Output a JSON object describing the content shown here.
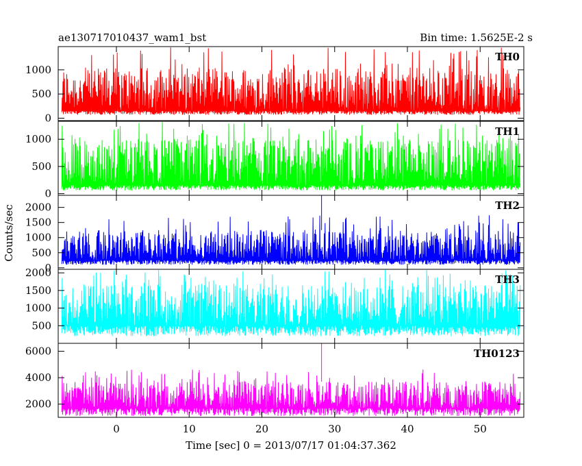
{
  "header": {
    "title": "ae130717010437_wam1_bst",
    "bin_time": "Bin time: 1.5625E-2 s"
  },
  "chart_data": {
    "type": "line",
    "title": "ae130717010437_wam1_bst",
    "subtitle": "Bin time: 1.5625E-2 s",
    "xlabel": "Time [sec] 0 = 2013/07/17 01:04:37.362",
    "ylabel": "Counts/sec",
    "xlim": [
      -8,
      56
    ],
    "x_ticks": [
      0,
      10,
      20,
      30,
      40,
      50
    ],
    "x_tick_labels": [
      "0",
      "10",
      "20",
      "30",
      "40",
      "50"
    ],
    "x_data_range": [
      -7.5,
      55.5
    ],
    "legend": "none",
    "grid": false,
    "panels": [
      {
        "name": "TH0",
        "color": "#ff0000",
        "ylim": [
          -50,
          1480
        ],
        "y_ticks": [
          0,
          500,
          1000
        ],
        "y_tick_labels": [
          "0",
          "500",
          "1000"
        ],
        "baseline_low": 70,
        "typical_low": 150,
        "typical_high": 1050,
        "peak_max": 1480
      },
      {
        "name": "TH1",
        "color": "#00ff00",
        "ylim": [
          -30,
          1330
        ],
        "y_ticks": [
          0,
          500,
          1000
        ],
        "y_tick_labels": [
          "0",
          "500",
          "1000"
        ],
        "baseline_low": 60,
        "typical_low": 150,
        "typical_high": 1000,
        "peak_max": 1330
      },
      {
        "name": "TH2",
        "color": "#0000ff",
        "ylim": [
          -50,
          2400
        ],
        "y_ticks": [
          0,
          500,
          1000,
          1500,
          2000
        ],
        "y_tick_labels": [
          "0",
          "500",
          "1000",
          "1500",
          "2000"
        ],
        "baseline_low": 100,
        "typical_low": 250,
        "typical_high": 1250,
        "peak_max": 1750,
        "spike": {
          "x": 28.2,
          "value": 2400
        }
      },
      {
        "name": "TH3",
        "color": "#00ffff",
        "ylim": [
          0,
          2100
        ],
        "y_ticks": [
          500,
          1000,
          1500,
          2000
        ],
        "y_tick_labels": [
          "500",
          "1000",
          "1500",
          "2000"
        ],
        "baseline_low": 200,
        "typical_low": 500,
        "typical_high": 1700,
        "peak_max": 2100
      },
      {
        "name": "TH0123",
        "color": "#ff00ff",
        "ylim": [
          1000,
          6600
        ],
        "y_ticks": [
          2000,
          4000,
          6000
        ],
        "y_tick_labels": [
          "2000",
          "4000",
          "6000"
        ],
        "baseline_low": 1100,
        "typical_low": 1700,
        "typical_high": 3700,
        "peak_max": 4700,
        "spike": {
          "x": 28.2,
          "value": 6600
        }
      }
    ]
  }
}
